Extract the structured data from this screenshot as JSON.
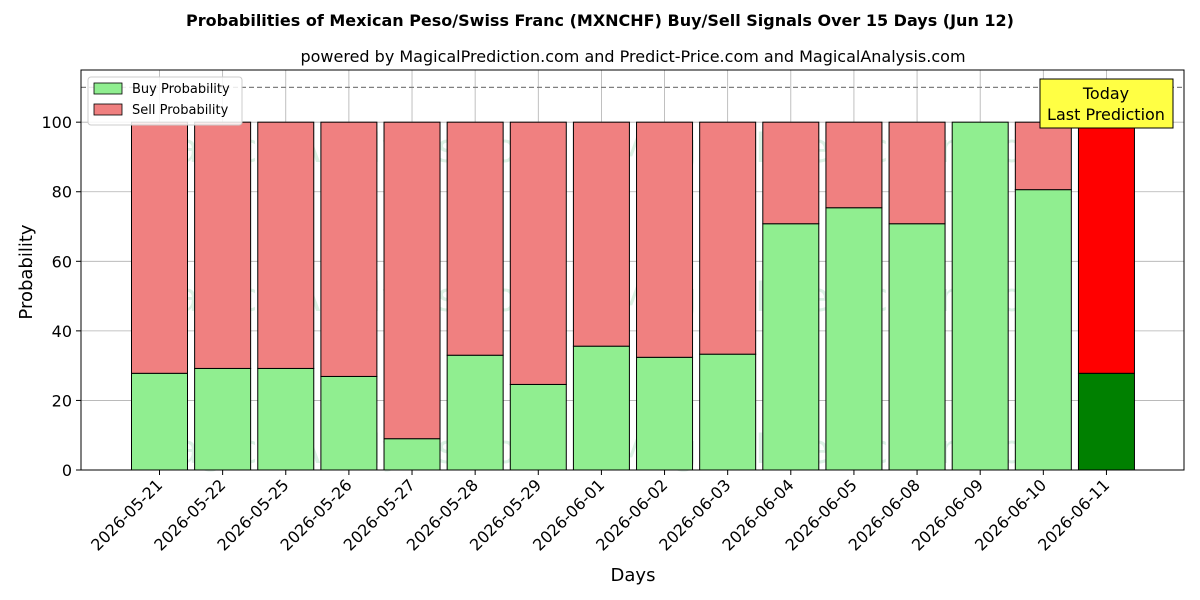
{
  "chart_data": {
    "type": "bar",
    "stacked": true,
    "title": "Probabilities of Mexican Peso/Swiss Franc (MXNCHF) Buy/Sell Signals Over 15 Days (Jun 12)",
    "subtitle": "powered by MagicalPrediction.com and Predict-Price.com and MagicalAnalysis.com",
    "xlabel": "Days",
    "ylabel": "Probability",
    "ylim": [
      0,
      115
    ],
    "yticks": [
      0,
      20,
      40,
      60,
      80,
      100
    ],
    "grid": true,
    "reference_line": 110,
    "categories": [
      "2026-05-21",
      "2026-05-22",
      "2026-05-25",
      "2026-05-26",
      "2026-05-27",
      "2026-05-28",
      "2026-05-29",
      "2026-06-01",
      "2026-06-02",
      "2026-06-03",
      "2026-06-04",
      "2026-06-05",
      "2026-06-08",
      "2026-06-09",
      "2026-06-10",
      "2026-06-11"
    ],
    "series": [
      {
        "name": "Buy Probability",
        "color": "#90ee90",
        "highlight_color": "#008000",
        "values": [
          27.8,
          29.2,
          29.2,
          26.9,
          9.0,
          33.0,
          24.6,
          35.6,
          32.4,
          33.3,
          70.8,
          75.4,
          70.8,
          100.0,
          80.6,
          27.8
        ]
      },
      {
        "name": "Sell Probability",
        "color": "#f08080",
        "highlight_color": "#ff0000",
        "values": [
          72.2,
          70.8,
          70.8,
          73.1,
          91.0,
          67.0,
          75.4,
          64.4,
          67.6,
          66.7,
          29.2,
          24.6,
          29.2,
          0.0,
          19.4,
          72.2
        ]
      }
    ],
    "highlight_index": 15,
    "legend_position": "top-left",
    "annotation": {
      "line1": "Today",
      "line2": "Last Prediction",
      "background": "#ffff44"
    },
    "watermarks": [
      "MagicalAnalysis.com",
      "MagicalPrediction.com"
    ]
  }
}
